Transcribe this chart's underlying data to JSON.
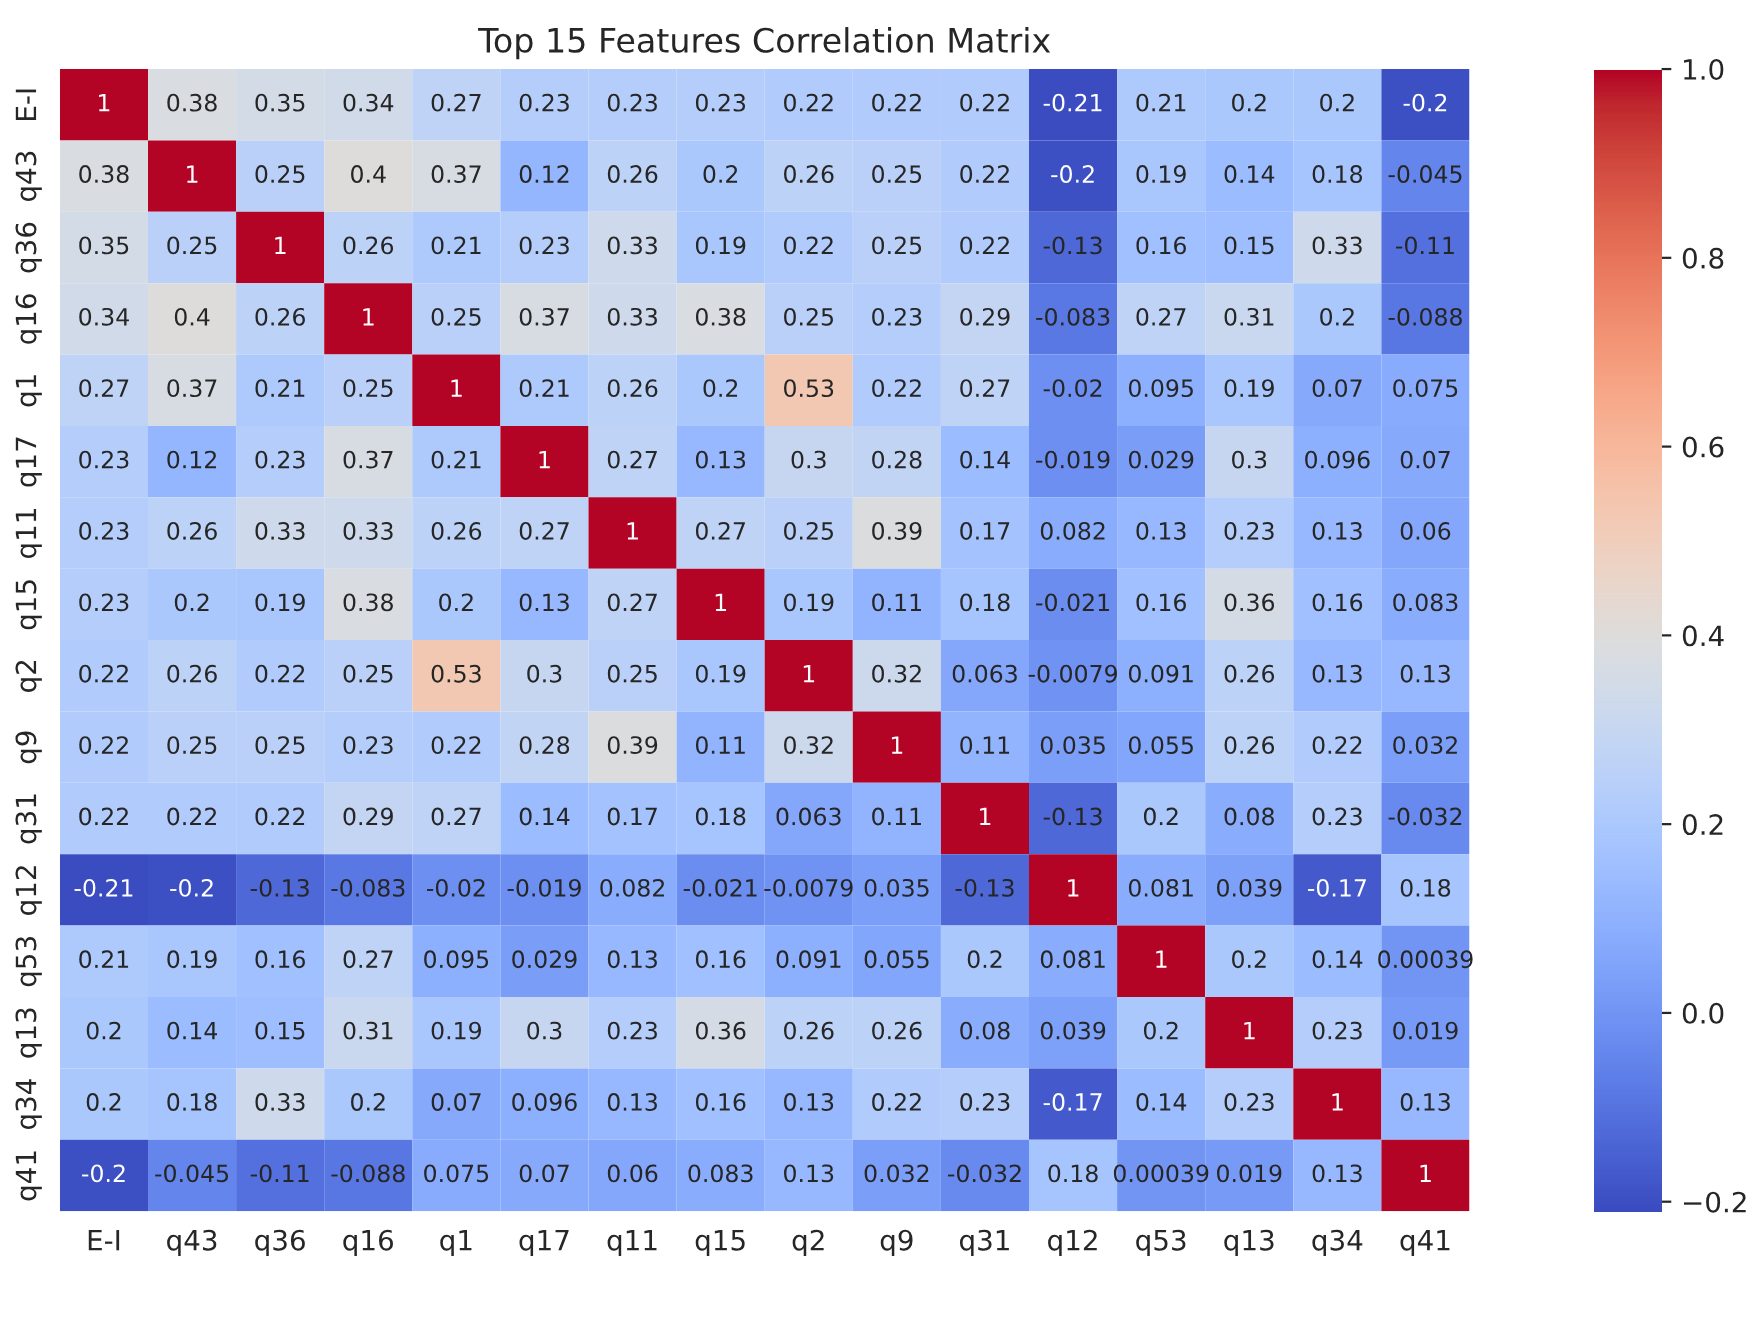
{
  "chart_data": {
    "type": "heatmap",
    "title": "Top 15 Features Correlation Matrix",
    "categories": [
      "E-I",
      "q43",
      "q36",
      "q16",
      "q1",
      "q17",
      "q11",
      "q15",
      "q2",
      "q9",
      "q31",
      "q12",
      "q53",
      "q13",
      "q34",
      "q41"
    ],
    "y_categories": [
      "E-I",
      "q43",
      "q36",
      "q16",
      "q1",
      "q17",
      "q11",
      "q15",
      "q2",
      "q9",
      "q31",
      "q12",
      "q53",
      "q13",
      "q34",
      "q41"
    ],
    "cells": [
      [
        1,
        0.38,
        0.35,
        0.34,
        0.27,
        0.23,
        0.23,
        0.23,
        0.22,
        0.22,
        0.22,
        -0.21,
        0.21,
        0.2,
        0.2,
        -0.2
      ],
      [
        0.38,
        1,
        0.25,
        0.4,
        0.37,
        0.12,
        0.26,
        0.2,
        0.26,
        0.25,
        0.22,
        -0.2,
        0.19,
        0.14,
        0.18,
        -0.045
      ],
      [
        0.35,
        0.25,
        1,
        0.26,
        0.21,
        0.23,
        0.33,
        0.19,
        0.22,
        0.25,
        0.22,
        -0.13,
        0.16,
        0.15,
        0.33,
        -0.11
      ],
      [
        0.34,
        0.4,
        0.26,
        1,
        0.25,
        0.37,
        0.33,
        0.38,
        0.25,
        0.23,
        0.29,
        -0.083,
        0.27,
        0.31,
        0.2,
        -0.088
      ],
      [
        0.27,
        0.37,
        0.21,
        0.25,
        1,
        0.21,
        0.26,
        0.2,
        0.53,
        0.22,
        0.27,
        -0.02,
        0.095,
        0.19,
        0.07,
        0.075
      ],
      [
        0.23,
        0.12,
        0.23,
        0.37,
        0.21,
        1,
        0.27,
        0.13,
        0.3,
        0.28,
        0.14,
        -0.019,
        0.029,
        0.3,
        0.096,
        0.07
      ],
      [
        0.23,
        0.26,
        0.33,
        0.33,
        0.26,
        0.27,
        1,
        0.27,
        0.25,
        0.39,
        0.17,
        0.082,
        0.13,
        0.23,
        0.13,
        0.06
      ],
      [
        0.23,
        0.2,
        0.19,
        0.38,
        0.2,
        0.13,
        0.27,
        1,
        0.19,
        0.11,
        0.18,
        -0.021,
        0.16,
        0.36,
        0.16,
        0.083
      ],
      [
        0.22,
        0.26,
        0.22,
        0.25,
        0.53,
        0.3,
        0.25,
        0.19,
        1,
        0.32,
        0.063,
        -0.0079,
        0.091,
        0.26,
        0.13,
        0.13
      ],
      [
        0.22,
        0.25,
        0.25,
        0.23,
        0.22,
        0.28,
        0.39,
        0.11,
        0.32,
        1,
        0.11,
        0.035,
        0.055,
        0.26,
        0.22,
        0.032
      ],
      [
        0.22,
        0.22,
        0.22,
        0.29,
        0.27,
        0.14,
        0.17,
        0.18,
        0.063,
        0.11,
        1,
        -0.13,
        0.2,
        0.08,
        0.23,
        -0.032
      ],
      [
        -0.21,
        -0.2,
        -0.13,
        -0.083,
        -0.02,
        -0.019,
        0.082,
        -0.021,
        -0.0079,
        0.035,
        -0.13,
        1,
        0.081,
        0.039,
        -0.17,
        0.18
      ],
      [
        0.21,
        0.19,
        0.16,
        0.27,
        0.095,
        0.029,
        0.13,
        0.16,
        0.091,
        0.055,
        0.2,
        0.081,
        1,
        0.2,
        0.14,
        0.00039
      ],
      [
        0.2,
        0.14,
        0.15,
        0.31,
        0.19,
        0.3,
        0.23,
        0.36,
        0.26,
        0.26,
        0.08,
        0.039,
        0.2,
        1,
        0.23,
        0.019
      ],
      [
        0.2,
        0.18,
        0.33,
        0.2,
        0.07,
        0.096,
        0.13,
        0.16,
        0.13,
        0.22,
        0.23,
        -0.17,
        0.14,
        0.23,
        1,
        0.13
      ],
      [
        -0.2,
        -0.045,
        -0.11,
        -0.088,
        0.075,
        0.07,
        0.06,
        0.083,
        0.13,
        0.032,
        -0.032,
        0.18,
        0.00039,
        0.019,
        0.13,
        1
      ]
    ],
    "data_labels": true,
    "clim": [
      -0.21,
      1
    ],
    "cticks": [
      {
        "value": -0.2,
        "label": "−0.2"
      },
      {
        "value": 0,
        "label": "0.0"
      },
      0.2,
      0.4,
      0.6,
      0.8,
      {
        "value": 1,
        "label": "1.0"
      }
    ]
  }
}
